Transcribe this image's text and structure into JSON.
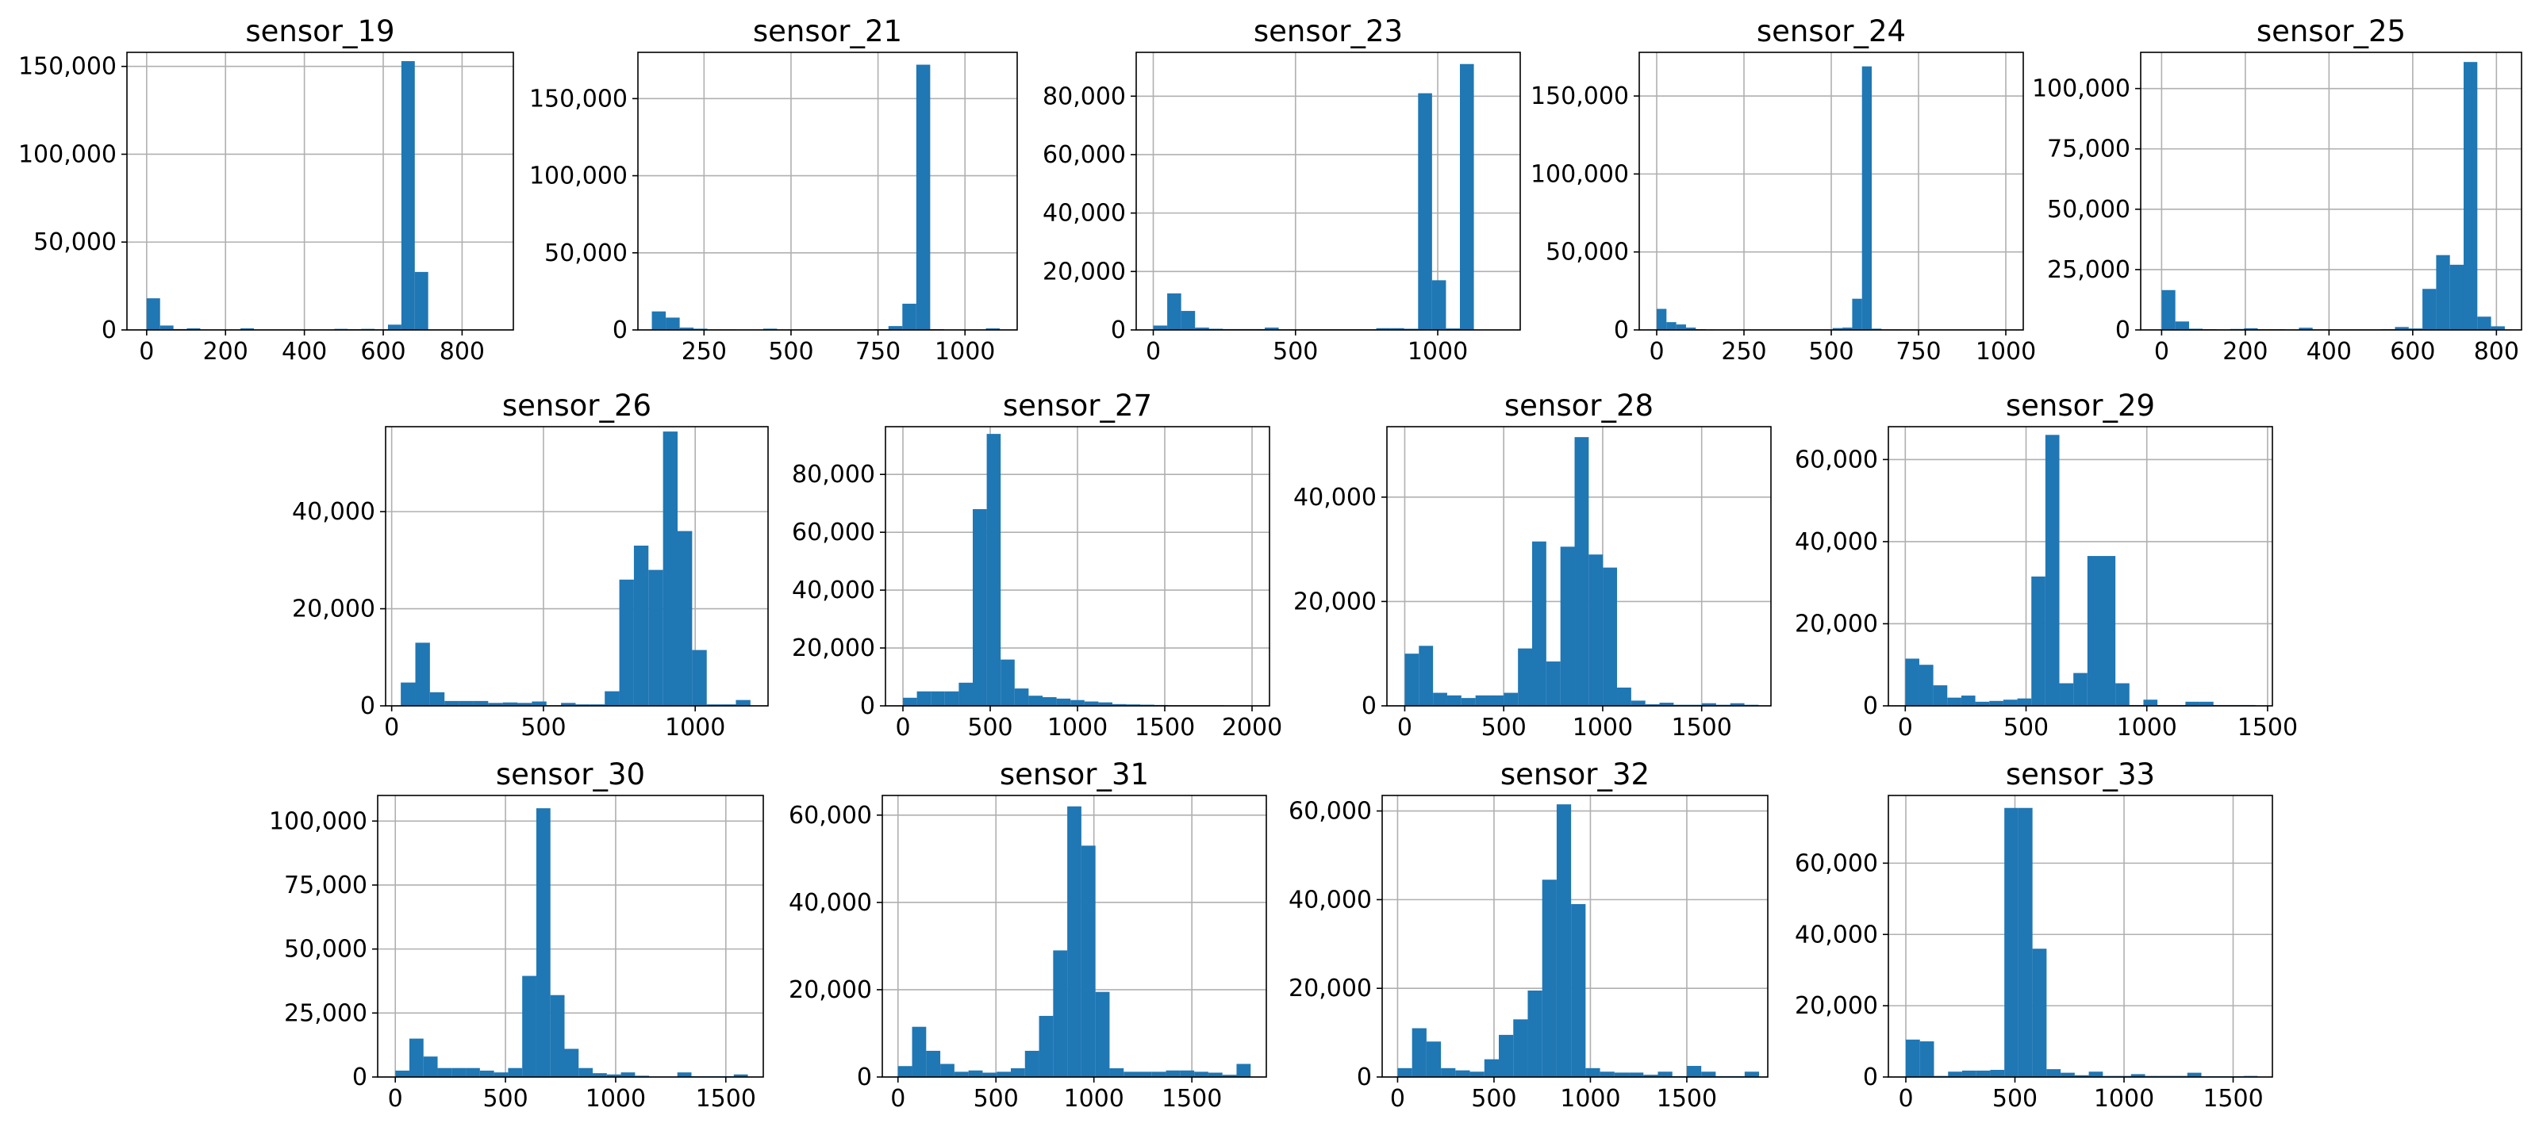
{
  "colors": {
    "bar": "#1f77b4",
    "grid": "#b0b0b0",
    "axis": "#000000"
  },
  "chart_data": [
    {
      "type": "bar",
      "title": "sensor_19",
      "grid": true,
      "xlim": [
        -50,
        930
      ],
      "ylim": [
        0,
        158000
      ],
      "xticks": [
        0,
        200,
        400,
        600,
        800
      ],
      "xtick_labels": [
        "0",
        "200",
        "400",
        "600",
        "800"
      ],
      "yticks": [
        0,
        50000,
        100000,
        150000
      ],
      "ytick_labels": [
        "0",
        "50000",
        "100000",
        "150000"
      ],
      "bin_start": 0,
      "bin_width": 34,
      "values": [
        18000,
        2500,
        500,
        900,
        100,
        200,
        100,
        900,
        100,
        200,
        100,
        100,
        100,
        100,
        600,
        400,
        600,
        300,
        3000,
        153000,
        33000,
        100,
        0,
        0,
        0
      ]
    },
    {
      "type": "bar",
      "title": "sensor_21",
      "grid": true,
      "xlim": [
        60,
        1150
      ],
      "ylim": [
        0,
        180000
      ],
      "xticks": [
        250,
        500,
        750,
        1000
      ],
      "xtick_labels": [
        "250",
        "500",
        "750",
        "1000"
      ],
      "yticks": [
        0,
        50000,
        100000,
        150000
      ],
      "ytick_labels": [
        "0",
        "50000",
        "100000",
        "150000"
      ],
      "bin_start": 100,
      "bin_width": 40,
      "values": [
        12000,
        8000,
        1500,
        800,
        300,
        300,
        200,
        200,
        800,
        300,
        200,
        200,
        200,
        200,
        200,
        300,
        500,
        2500,
        17000,
        172000,
        500,
        200,
        200,
        200,
        1000
      ]
    },
    {
      "type": "bar",
      "title": "sensor_23",
      "grid": true,
      "xlim": [
        -60,
        1290
      ],
      "ylim": [
        0,
        95000
      ],
      "xticks": [
        0,
        500,
        1000
      ],
      "xtick_labels": [
        "0",
        "500",
        "1000"
      ],
      "yticks": [
        0,
        20000,
        40000,
        60000,
        80000
      ],
      "ytick_labels": [
        "0",
        "20000",
        "40000",
        "60000",
        "80000"
      ],
      "bin_start": 0,
      "bin_width": 49,
      "values": [
        1500,
        12500,
        6500,
        800,
        400,
        300,
        300,
        300,
        800,
        200,
        200,
        200,
        200,
        200,
        200,
        200,
        600,
        600,
        400,
        81000,
        17000,
        500,
        91000,
        0,
        0
      ]
    },
    {
      "type": "bar",
      "title": "sensor_24",
      "grid": true,
      "xlim": [
        -50,
        1050
      ],
      "ylim": [
        0,
        178000
      ],
      "xticks": [
        0,
        250,
        500,
        750,
        1000
      ],
      "xtick_labels": [
        "0",
        "250",
        "500",
        "750",
        "1000"
      ],
      "bin_start": 0,
      "bin_width": 28,
      "yticks": [
        0,
        50000,
        100000,
        150000
      ],
      "ytick_labels": [
        "0",
        "50000",
        "100000",
        "150000"
      ],
      "values": [
        13500,
        5000,
        3500,
        1500,
        500,
        300,
        200,
        200,
        200,
        200,
        200,
        200,
        200,
        200,
        200,
        200,
        200,
        200,
        1200,
        1500,
        20000,
        169000,
        800,
        300,
        300
      ]
    },
    {
      "type": "bar",
      "title": "sensor_25",
      "grid": true,
      "xlim": [
        -50,
        860
      ],
      "ylim": [
        0,
        115000
      ],
      "xticks": [
        0,
        200,
        400,
        600,
        800
      ],
      "xtick_labels": [
        "0",
        "200",
        "400",
        "600",
        "800"
      ],
      "yticks": [
        0,
        25000,
        50000,
        75000,
        100000
      ],
      "ytick_labels": [
        "0",
        "25000",
        "50000",
        "75000",
        "100000"
      ],
      "bin_start": 0,
      "bin_width": 32.8,
      "values": [
        16500,
        3500,
        500,
        300,
        200,
        400,
        700,
        300,
        300,
        200,
        900,
        200,
        200,
        200,
        200,
        200,
        300,
        1200,
        600,
        17000,
        31000,
        27000,
        111000,
        5500,
        1500
      ]
    },
    {
      "type": "bar",
      "title": "sensor_26",
      "grid": true,
      "xlim": [
        -20,
        1240
      ],
      "ylim": [
        0,
        57500
      ],
      "xticks": [
        0,
        500,
        1000
      ],
      "xtick_labels": [
        "0",
        "500",
        "1000"
      ],
      "yticks": [
        0,
        20000,
        40000
      ],
      "ytick_labels": [
        "0",
        "20000",
        "40000"
      ],
      "bin_start": 30,
      "bin_width": 48,
      "values": [
        4800,
        13000,
        2800,
        1000,
        1000,
        1000,
        600,
        700,
        600,
        900,
        100,
        600,
        300,
        300,
        3000,
        26000,
        33000,
        28000,
        56500,
        36000,
        11500,
        300,
        300,
        1200,
        0
      ]
    },
    {
      "type": "bar",
      "title": "sensor_27",
      "grid": true,
      "xlim": [
        -100,
        2100
      ],
      "ylim": [
        0,
        96500
      ],
      "xticks": [
        0,
        500,
        1000,
        1500,
        2000
      ],
      "xtick_labels": [
        "0",
        "500",
        "1000",
        "1500",
        "2000"
      ],
      "yticks": [
        0,
        20000,
        40000,
        60000,
        80000
      ],
      "ytick_labels": [
        "0",
        "20000",
        "40000",
        "60000",
        "80000"
      ],
      "bin_start": 0,
      "bin_width": 80,
      "values": [
        2800,
        5000,
        5000,
        5000,
        8000,
        68000,
        94000,
        16000,
        6000,
        3500,
        3000,
        2500,
        2000,
        1500,
        1200,
        600,
        500,
        400,
        300,
        200,
        200,
        200,
        200,
        100,
        100
      ]
    },
    {
      "type": "bar",
      "title": "sensor_28",
      "grid": true,
      "xlim": [
        -90,
        1850
      ],
      "ylim": [
        0,
        53500
      ],
      "xticks": [
        0,
        500,
        1000,
        1500
      ],
      "xtick_labels": [
        "0",
        "500",
        "1000",
        "1500"
      ],
      "yticks": [
        0,
        20000,
        40000
      ],
      "ytick_labels": [
        "0",
        "20000",
        "40000"
      ],
      "bin_start": 0,
      "bin_width": 71.5,
      "values": [
        10000,
        11500,
        2500,
        2000,
        1500,
        2000,
        2000,
        2500,
        11000,
        31500,
        8500,
        30500,
        51500,
        29000,
        26500,
        3500,
        1000,
        300,
        600,
        200,
        200,
        500,
        200,
        500,
        200
      ]
    },
    {
      "type": "bar",
      "title": "sensor_29",
      "grid": true,
      "xlim": [
        -70,
        1520
      ],
      "ylim": [
        0,
        68000
      ],
      "xticks": [
        0,
        500,
        1000,
        1500
      ],
      "xtick_labels": [
        "0",
        "500",
        "1000",
        "1500"
      ],
      "yticks": [
        0,
        20000,
        40000,
        60000
      ],
      "ytick_labels": [
        "0",
        "20000",
        "40000",
        "60000"
      ],
      "bin_start": 0,
      "bin_width": 58,
      "values": [
        11500,
        10000,
        5000,
        2000,
        2500,
        1000,
        1200,
        1500,
        1800,
        31500,
        66000,
        5500,
        8000,
        36500,
        36500,
        5500,
        200,
        1500,
        200,
        200,
        1000,
        1000,
        200,
        200,
        200
      ]
    },
    {
      "type": "bar",
      "title": "sensor_30",
      "grid": true,
      "xlim": [
        -80,
        1670
      ],
      "ylim": [
        0,
        110000
      ],
      "xticks": [
        0,
        500,
        1000,
        1500
      ],
      "xtick_labels": [
        "0",
        "500",
        "1000",
        "1500"
      ],
      "yticks": [
        0,
        25000,
        50000,
        75000,
        100000
      ],
      "ytick_labels": [
        "0",
        "25000",
        "50000",
        "75000",
        "100000"
      ],
      "bin_start": 0,
      "bin_width": 64,
      "values": [
        2500,
        15000,
        8000,
        3500,
        3500,
        3500,
        2500,
        1800,
        3500,
        39500,
        105000,
        32000,
        11000,
        3500,
        1500,
        1000,
        1800,
        500,
        200,
        200,
        1800,
        300,
        300,
        300,
        1000
      ]
    },
    {
      "type": "bar",
      "title": "sensor_31",
      "grid": true,
      "xlim": [
        -80,
        1880
      ],
      "ylim": [
        0,
        64500
      ],
      "xticks": [
        0,
        500,
        1000,
        1500
      ],
      "xtick_labels": [
        "0",
        "500",
        "1000",
        "1500"
      ],
      "yticks": [
        0,
        20000,
        40000,
        60000
      ],
      "ytick_labels": [
        "0",
        "20000",
        "40000",
        "60000"
      ],
      "bin_start": 0,
      "bin_width": 72,
      "values": [
        2500,
        11500,
        6000,
        3000,
        1200,
        1500,
        1000,
        1200,
        2000,
        6000,
        14000,
        29000,
        62000,
        53000,
        19500,
        2000,
        1200,
        1200,
        1200,
        1500,
        1500,
        1200,
        1000,
        500,
        3000
      ]
    },
    {
      "type": "bar",
      "title": "sensor_32",
      "grid": true,
      "xlim": [
        -80,
        1920
      ],
      "ylim": [
        0,
        63500
      ],
      "xticks": [
        0,
        500,
        1000,
        1500
      ],
      "xtick_labels": [
        "0",
        "500",
        "1000",
        "1500"
      ],
      "yticks": [
        0,
        20000,
        40000,
        60000
      ],
      "ytick_labels": [
        "0",
        "20000",
        "40000",
        "60000"
      ],
      "bin_start": 0,
      "bin_width": 75,
      "values": [
        2000,
        11000,
        8000,
        2000,
        1500,
        1200,
        4000,
        9500,
        13000,
        19500,
        44500,
        61500,
        39000,
        2000,
        1200,
        1000,
        1000,
        500,
        1200,
        200,
        2500,
        1200,
        200,
        200,
        1200
      ]
    },
    {
      "type": "bar",
      "title": "sensor_33",
      "grid": true,
      "xlim": [
        -80,
        1680
      ],
      "ylim": [
        0,
        79000
      ],
      "xticks": [
        0,
        500,
        1000,
        1500
      ],
      "xtick_labels": [
        "0",
        "500",
        "1000",
        "1500"
      ],
      "yticks": [
        0,
        20000,
        40000,
        60000
      ],
      "ytick_labels": [
        "0",
        "20000",
        "40000",
        "60000"
      ],
      "bin_start": 0,
      "bin_width": 64.5,
      "values": [
        10500,
        10000,
        300,
        1500,
        1800,
        1800,
        2000,
        75500,
        75500,
        36000,
        2200,
        1200,
        500,
        1500,
        300,
        300,
        800,
        300,
        300,
        300,
        1200,
        200,
        200,
        200,
        300
      ]
    }
  ]
}
